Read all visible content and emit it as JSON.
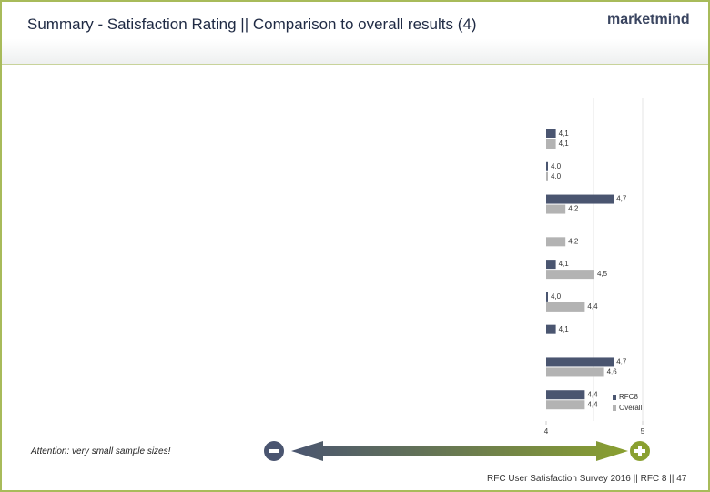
{
  "header": {
    "title": "Summary - Satisfaction Rating || Comparison to overall results (4)",
    "logo": "marketmind"
  },
  "chart_data": {
    "type": "bar",
    "orientation": "horizontal",
    "categories": [
      null,
      null,
      null,
      null,
      null,
      null,
      null,
      null,
      null
    ],
    "series": [
      {
        "name": "RFC8",
        "color": "#4a5570",
        "values": [
          4.1,
          4.0,
          4.7,
          null,
          4.1,
          4.0,
          4.1,
          4.7,
          4.4
        ],
        "value_labels": [
          "4,1",
          "4,0",
          "4,7",
          null,
          "4,1",
          "4,0",
          "4,1",
          "4,7",
          "4,4"
        ]
      },
      {
        "name": "Overall",
        "color": "#b3b3b3",
        "values": [
          4.1,
          4.0,
          4.2,
          4.2,
          4.5,
          4.4,
          null,
          4.6,
          4.4
        ],
        "value_labels": [
          "4,1",
          "4,0",
          "4,2",
          "4,2",
          "4,5",
          "4,4",
          null,
          "4,6",
          "4,4"
        ]
      }
    ],
    "xlim": [
      4,
      5
    ],
    "xticks": [
      4,
      5
    ],
    "legend": "bottom-right"
  },
  "note": "Attention: very small sample sizes!",
  "footer": "RFC User Satisfaction Survey 2016 || RFC 8 || 47"
}
